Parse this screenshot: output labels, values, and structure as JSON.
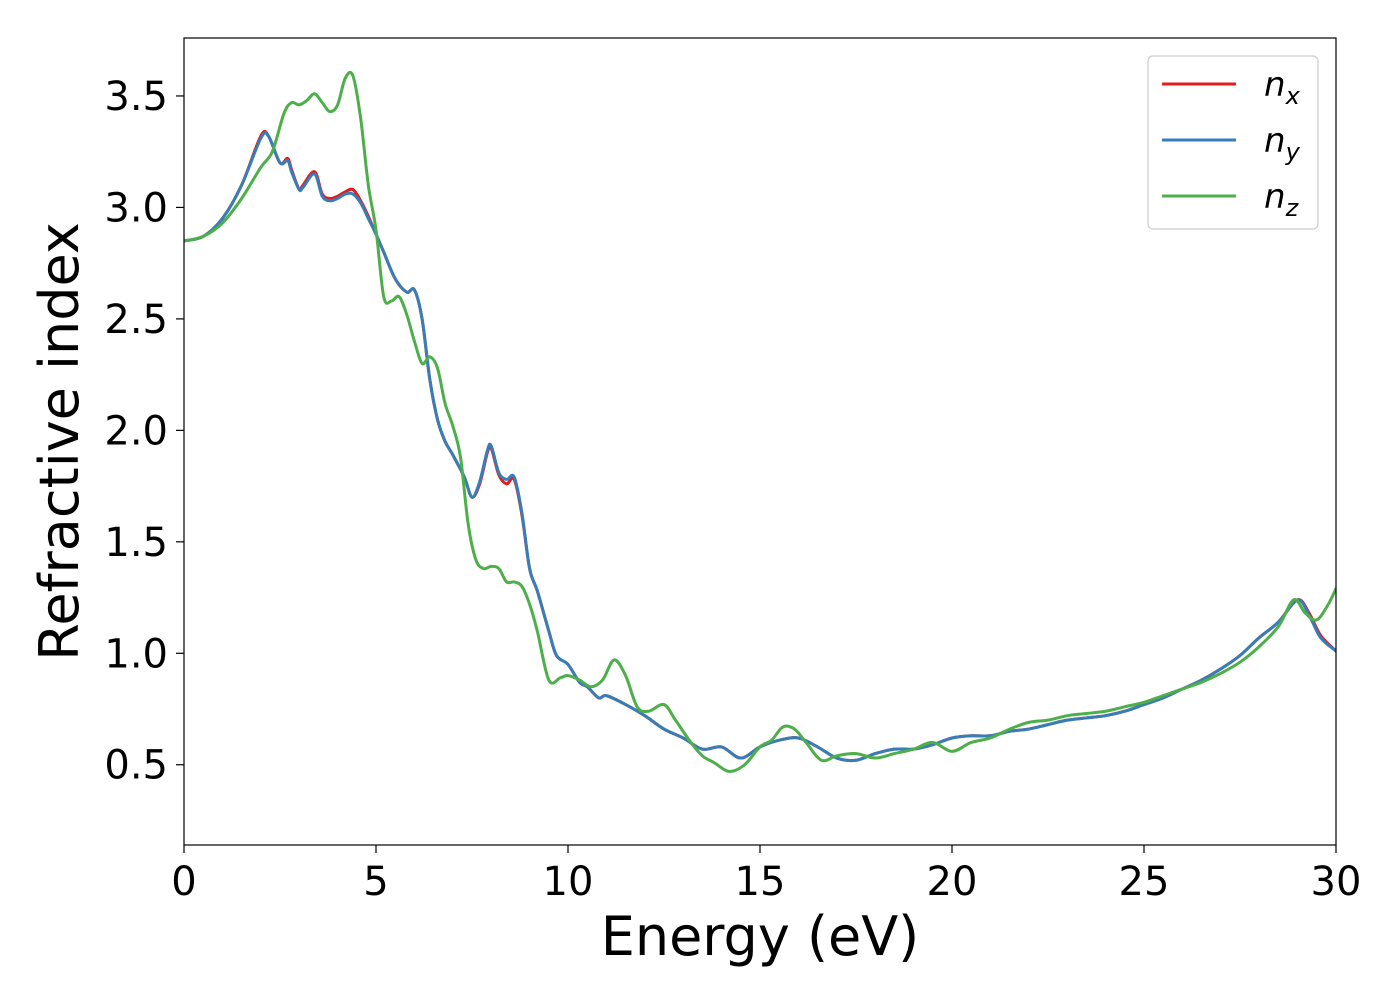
{
  "chart_data": {
    "type": "line",
    "xlabel": "Energy (eV)",
    "ylabel": "Refractive index",
    "xlim": [
      0,
      30
    ],
    "ylim": [
      0.14,
      3.76
    ],
    "xticks": [
      0,
      5,
      10,
      15,
      20,
      25,
      30
    ],
    "xtick_labels": [
      "0",
      "5",
      "10",
      "15",
      "20",
      "25",
      "30"
    ],
    "yticks": [
      0.5,
      1.0,
      1.5,
      2.0,
      2.5,
      3.0,
      3.5
    ],
    "ytick_labels": [
      "0.5",
      "1.0",
      "1.5",
      "2.0",
      "2.5",
      "3.0",
      "3.5"
    ],
    "grid": false,
    "legend_position": "top-right",
    "series": [
      {
        "name": "n_x",
        "label_main": "n",
        "label_sub": "x",
        "color": "#e41a1c",
        "x": [
          0,
          0.5,
          1.0,
          1.5,
          2.0,
          2.2,
          2.5,
          2.7,
          2.8,
          3.0,
          3.1,
          3.4,
          3.6,
          3.8,
          4.0,
          4.2,
          4.4,
          4.6,
          4.8,
          5.0,
          5.2,
          5.5,
          5.8,
          6.0,
          6.2,
          6.4,
          6.6,
          6.8,
          7.0,
          7.3,
          7.5,
          7.7,
          7.9,
          8.0,
          8.2,
          8.4,
          8.6,
          8.8,
          9.0,
          9.2,
          9.5,
          9.7,
          10.0,
          10.3,
          10.5,
          10.8,
          11.0,
          11.5,
          12.0,
          12.5,
          13.0,
          13.5,
          14.0,
          14.5,
          15.0,
          15.5,
          16.0,
          16.5,
          17.0,
          17.5,
          18.0,
          18.5,
          19.0,
          19.5,
          20.0,
          20.5,
          21.0,
          21.5,
          22.0,
          22.5,
          23.0,
          23.5,
          24.0,
          24.5,
          25.0,
          25.5,
          26.0,
          26.5,
          27.0,
          27.5,
          28.0,
          28.5,
          29.0,
          29.3,
          29.6,
          30.0
        ],
        "y": [
          2.85,
          2.87,
          2.95,
          3.1,
          3.32,
          3.32,
          3.2,
          3.22,
          3.17,
          3.08,
          3.1,
          3.16,
          3.06,
          3.04,
          3.05,
          3.07,
          3.08,
          3.03,
          2.96,
          2.88,
          2.8,
          2.68,
          2.62,
          2.63,
          2.5,
          2.23,
          2.05,
          1.95,
          1.89,
          1.79,
          1.7,
          1.76,
          1.9,
          1.92,
          1.8,
          1.76,
          1.78,
          1.62,
          1.38,
          1.28,
          1.1,
          0.99,
          0.95,
          0.87,
          0.85,
          0.8,
          0.81,
          0.77,
          0.72,
          0.66,
          0.62,
          0.57,
          0.58,
          0.53,
          0.58,
          0.61,
          0.62,
          0.58,
          0.53,
          0.52,
          0.55,
          0.57,
          0.57,
          0.59,
          0.62,
          0.63,
          0.63,
          0.65,
          0.66,
          0.68,
          0.7,
          0.71,
          0.72,
          0.74,
          0.77,
          0.8,
          0.84,
          0.88,
          0.93,
          0.99,
          1.07,
          1.14,
          1.24,
          1.18,
          1.08,
          1.01
        ]
      },
      {
        "name": "n_y",
        "label_main": "n",
        "label_sub": "y",
        "color": "#377eb8",
        "x": [
          0,
          0.5,
          1.0,
          1.5,
          2.0,
          2.2,
          2.5,
          2.7,
          2.8,
          3.0,
          3.1,
          3.4,
          3.6,
          3.8,
          4.0,
          4.2,
          4.4,
          4.6,
          4.8,
          5.0,
          5.2,
          5.5,
          5.8,
          6.0,
          6.2,
          6.4,
          6.6,
          6.8,
          7.0,
          7.3,
          7.5,
          7.7,
          7.9,
          8.0,
          8.2,
          8.4,
          8.6,
          8.8,
          9.0,
          9.2,
          9.5,
          9.7,
          10.0,
          10.3,
          10.5,
          10.8,
          11.0,
          11.5,
          12.0,
          12.5,
          13.0,
          13.5,
          14.0,
          14.5,
          15.0,
          15.5,
          16.0,
          16.5,
          17.0,
          17.5,
          18.0,
          18.5,
          19.0,
          19.5,
          20.0,
          20.5,
          21.0,
          21.5,
          22.0,
          22.5,
          23.0,
          23.5,
          24.0,
          24.5,
          25.0,
          25.5,
          26.0,
          26.5,
          27.0,
          27.5,
          28.0,
          28.5,
          29.0,
          29.3,
          29.6,
          30.0
        ],
        "y": [
          2.85,
          2.87,
          2.95,
          3.1,
          3.31,
          3.32,
          3.2,
          3.21,
          3.16,
          3.08,
          3.09,
          3.15,
          3.05,
          3.03,
          3.04,
          3.06,
          3.06,
          3.02,
          2.95,
          2.88,
          2.8,
          2.68,
          2.62,
          2.63,
          2.5,
          2.23,
          2.05,
          1.95,
          1.89,
          1.79,
          1.7,
          1.77,
          1.91,
          1.93,
          1.81,
          1.78,
          1.79,
          1.63,
          1.38,
          1.28,
          1.1,
          0.99,
          0.95,
          0.87,
          0.85,
          0.8,
          0.81,
          0.77,
          0.72,
          0.66,
          0.62,
          0.57,
          0.58,
          0.53,
          0.58,
          0.61,
          0.62,
          0.58,
          0.53,
          0.52,
          0.55,
          0.57,
          0.57,
          0.59,
          0.62,
          0.63,
          0.63,
          0.65,
          0.66,
          0.68,
          0.7,
          0.71,
          0.72,
          0.74,
          0.77,
          0.8,
          0.84,
          0.88,
          0.93,
          0.99,
          1.07,
          1.14,
          1.24,
          1.17,
          1.07,
          1.01
        ]
      },
      {
        "name": "n_z",
        "label_main": "n",
        "label_sub": "z",
        "color": "#4daf4a",
        "x": [
          0,
          0.5,
          1.0,
          1.5,
          2.0,
          2.3,
          2.6,
          2.8,
          3.0,
          3.2,
          3.4,
          3.6,
          3.8,
          4.0,
          4.2,
          4.4,
          4.6,
          4.8,
          5.0,
          5.2,
          5.4,
          5.6,
          5.8,
          6.0,
          6.2,
          6.4,
          6.6,
          6.8,
          7.0,
          7.2,
          7.4,
          7.6,
          7.8,
          8.0,
          8.2,
          8.4,
          8.6,
          8.8,
          9.0,
          9.2,
          9.5,
          9.8,
          10.0,
          10.3,
          10.6,
          10.9,
          11.2,
          11.5,
          11.8,
          12.1,
          12.5,
          12.8,
          13.2,
          13.5,
          13.8,
          14.2,
          14.6,
          15.0,
          15.3,
          15.6,
          15.9,
          16.2,
          16.6,
          17.0,
          17.5,
          18.0,
          18.5,
          19.0,
          19.5,
          20.0,
          20.5,
          21.0,
          21.5,
          22.0,
          22.5,
          23.0,
          23.5,
          24.0,
          24.5,
          25.0,
          25.5,
          26.0,
          26.5,
          27.0,
          27.5,
          28.0,
          28.5,
          28.9,
          29.2,
          29.5,
          29.8,
          30.0
        ],
        "y": [
          2.85,
          2.87,
          2.93,
          3.04,
          3.18,
          3.25,
          3.42,
          3.47,
          3.46,
          3.48,
          3.51,
          3.47,
          3.43,
          3.46,
          3.58,
          3.59,
          3.4,
          3.1,
          2.9,
          2.6,
          2.58,
          2.6,
          2.52,
          2.4,
          2.3,
          2.33,
          2.28,
          2.12,
          2.02,
          1.88,
          1.58,
          1.42,
          1.38,
          1.39,
          1.38,
          1.32,
          1.32,
          1.3,
          1.22,
          1.1,
          0.88,
          0.89,
          0.9,
          0.88,
          0.85,
          0.88,
          0.97,
          0.9,
          0.76,
          0.74,
          0.77,
          0.7,
          0.6,
          0.54,
          0.51,
          0.47,
          0.5,
          0.58,
          0.61,
          0.67,
          0.66,
          0.6,
          0.52,
          0.54,
          0.55,
          0.53,
          0.55,
          0.57,
          0.6,
          0.56,
          0.6,
          0.62,
          0.66,
          0.69,
          0.7,
          0.72,
          0.73,
          0.74,
          0.76,
          0.78,
          0.81,
          0.84,
          0.87,
          0.91,
          0.96,
          1.03,
          1.12,
          1.24,
          1.18,
          1.15,
          1.22,
          1.29
        ]
      }
    ]
  }
}
